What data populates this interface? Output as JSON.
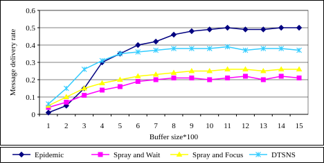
{
  "chart_data": {
    "type": "line",
    "x_label": "Buffer size*100",
    "y_label": "Message delivery rate",
    "categories": [
      "1",
      "2",
      "3",
      "4",
      "5",
      "6",
      "7",
      "8",
      "9",
      "10",
      "11",
      "12",
      "13",
      "14",
      "15"
    ],
    "ylim": [
      0,
      0.6
    ],
    "yticks": [
      0,
      0.1,
      0.2,
      0.3,
      0.4,
      0.5,
      0.6
    ],
    "grid": true,
    "legend": "bottom",
    "series": [
      {
        "name": "Epidemic",
        "color": "#000080",
        "marker": "diamond",
        "values": [
          0.01,
          0.05,
          0.15,
          0.3,
          0.35,
          0.4,
          0.42,
          0.46,
          0.48,
          0.49,
          0.5,
          0.49,
          0.49,
          0.5,
          0.5
        ]
      },
      {
        "name": "Spray and Wait",
        "color": "#ff00ff",
        "marker": "square",
        "values": [
          0.04,
          0.07,
          0.11,
          0.14,
          0.16,
          0.19,
          0.2,
          0.21,
          0.21,
          0.2,
          0.21,
          0.22,
          0.2,
          0.22,
          0.21
        ]
      },
      {
        "name": "Spray and Focus",
        "color": "#ffff00",
        "marker": "triangle",
        "values": [
          0.05,
          0.1,
          0.15,
          0.18,
          0.2,
          0.22,
          0.23,
          0.24,
          0.25,
          0.25,
          0.26,
          0.26,
          0.25,
          0.26,
          0.26
        ]
      },
      {
        "name": "DTSNS",
        "color": "#33ccff",
        "marker": "star",
        "values": [
          0.06,
          0.15,
          0.26,
          0.31,
          0.35,
          0.36,
          0.37,
          0.38,
          0.38,
          0.38,
          0.39,
          0.37,
          0.38,
          0.38,
          0.37
        ]
      }
    ]
  }
}
